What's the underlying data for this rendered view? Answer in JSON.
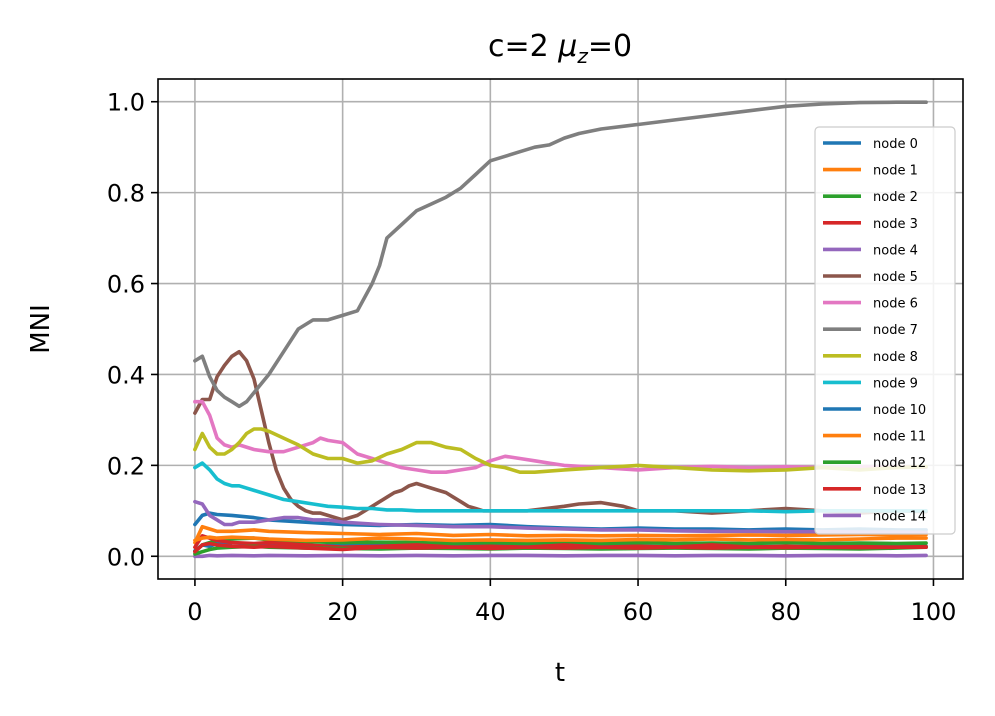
{
  "chart_data": {
    "type": "line",
    "title": "c=2 μ_z=0",
    "title_parts": {
      "prefix": "c=2 ",
      "mu": "μ",
      "sub": "z",
      "suffix": "=0"
    },
    "xlabel": "t",
    "ylabel": "MNI",
    "xlim": [
      -5,
      104
    ],
    "ylim": [
      -0.05,
      1.05
    ],
    "xticks": [
      0,
      20,
      40,
      60,
      80,
      100
    ],
    "xtick_labels": [
      "0",
      "20",
      "40",
      "60",
      "80",
      "100"
    ],
    "yticks": [
      0.0,
      0.2,
      0.4,
      0.6,
      0.8,
      1.0
    ],
    "ytick_labels": [
      "0.0",
      "0.2",
      "0.4",
      "0.6",
      "0.8",
      "1.0"
    ],
    "grid": true,
    "legend_position": "center-right",
    "series": [
      {
        "name": "node 0",
        "color": "#1f77b4",
        "x": [
          0,
          1,
          2,
          3,
          5,
          8,
          10,
          15,
          20,
          25,
          30,
          35,
          40,
          45,
          50,
          55,
          60,
          65,
          70,
          75,
          80,
          85,
          90,
          95,
          99
        ],
        "y": [
          0.012,
          0.025,
          0.022,
          0.028,
          0.03,
          0.026,
          0.025,
          0.022,
          0.024,
          0.026,
          0.025,
          0.022,
          0.023,
          0.022,
          0.024,
          0.023,
          0.022,
          0.021,
          0.023,
          0.022,
          0.021,
          0.022,
          0.022,
          0.023,
          0.022
        ]
      },
      {
        "name": "node 1",
        "color": "#ff7f0e",
        "x": [
          0,
          1,
          2,
          3,
          5,
          8,
          10,
          15,
          20,
          25,
          30,
          35,
          40,
          45,
          50,
          55,
          60,
          65,
          70,
          75,
          80,
          85,
          90,
          95,
          99
        ],
        "y": [
          0.03,
          0.065,
          0.06,
          0.055,
          0.055,
          0.058,
          0.055,
          0.052,
          0.05,
          0.048,
          0.05,
          0.046,
          0.048,
          0.045,
          0.046,
          0.045,
          0.046,
          0.045,
          0.046,
          0.047,
          0.046,
          0.047,
          0.048,
          0.047,
          0.048
        ]
      },
      {
        "name": "node 2",
        "color": "#2ca02c",
        "x": [
          0,
          1,
          2,
          3,
          5,
          8,
          10,
          15,
          20,
          25,
          30,
          35,
          40,
          45,
          50,
          55,
          60,
          65,
          70,
          75,
          80,
          85,
          90,
          95,
          99
        ],
        "y": [
          0.01,
          0.025,
          0.03,
          0.035,
          0.038,
          0.04,
          0.036,
          0.032,
          0.03,
          0.031,
          0.03,
          0.028,
          0.03,
          0.028,
          0.029,
          0.028,
          0.03,
          0.028,
          0.029,
          0.028,
          0.03,
          0.028,
          0.029,
          0.028,
          0.029
        ]
      },
      {
        "name": "node 3",
        "color": "#d62728",
        "x": [
          0,
          1,
          2,
          3,
          5,
          8,
          10,
          15,
          20,
          25,
          30,
          35,
          40,
          45,
          50,
          55,
          60,
          65,
          70,
          75,
          80,
          85,
          90,
          95,
          99
        ],
        "y": [
          0.02,
          0.045,
          0.04,
          0.035,
          0.03,
          0.028,
          0.03,
          0.025,
          0.02,
          0.022,
          0.025,
          0.02,
          0.022,
          0.02,
          0.025,
          0.02,
          0.022,
          0.02,
          0.025,
          0.02,
          0.022,
          0.02,
          0.021,
          0.02,
          0.021
        ]
      },
      {
        "name": "node 4",
        "color": "#9467bd",
        "x": [
          0,
          1,
          2,
          3,
          5,
          8,
          10,
          15,
          20,
          25,
          30,
          35,
          40,
          45,
          50,
          55,
          60,
          65,
          70,
          75,
          80,
          85,
          90,
          95,
          99
        ],
        "y": [
          0.0,
          0.0,
          0.002,
          0.001,
          0.002,
          0.001,
          0.002,
          0.001,
          0.002,
          0.001,
          0.002,
          0.001,
          0.002,
          0.002,
          0.001,
          0.002,
          0.002,
          0.001,
          0.002,
          0.002,
          0.001,
          0.002,
          0.002,
          0.001,
          0.002
        ]
      },
      {
        "name": "node 5",
        "color": "#8c564b",
        "x": [
          0,
          1,
          2,
          3,
          4,
          5,
          6,
          7,
          8,
          9,
          10,
          11,
          12,
          13,
          14,
          15,
          16,
          17,
          18,
          19,
          20,
          21,
          22,
          23,
          24,
          25,
          26,
          27,
          28,
          29,
          30,
          31,
          32,
          33,
          34,
          35,
          36,
          37,
          38,
          39,
          40,
          45,
          50,
          52,
          55,
          58,
          60,
          65,
          70,
          75,
          80,
          85,
          90,
          95,
          99
        ],
        "y": [
          0.315,
          0.345,
          0.345,
          0.395,
          0.42,
          0.44,
          0.45,
          0.43,
          0.39,
          0.32,
          0.25,
          0.19,
          0.15,
          0.125,
          0.11,
          0.1,
          0.095,
          0.095,
          0.09,
          0.085,
          0.08,
          0.085,
          0.09,
          0.1,
          0.11,
          0.12,
          0.13,
          0.14,
          0.145,
          0.155,
          0.16,
          0.155,
          0.15,
          0.145,
          0.14,
          0.13,
          0.12,
          0.11,
          0.105,
          0.1,
          0.1,
          0.1,
          0.11,
          0.115,
          0.118,
          0.11,
          0.1,
          0.1,
          0.095,
          0.1,
          0.105,
          0.1,
          0.095,
          0.1,
          0.098
        ]
      },
      {
        "name": "node 6",
        "color": "#e377c2",
        "x": [
          0,
          1,
          2,
          3,
          4,
          5,
          6,
          8,
          10,
          12,
          14,
          16,
          17,
          18,
          20,
          22,
          24,
          26,
          28,
          30,
          32,
          34,
          36,
          38,
          40,
          42,
          44,
          46,
          48,
          50,
          55,
          60,
          65,
          70,
          75,
          80,
          85,
          90,
          95,
          99
        ],
        "y": [
          0.34,
          0.34,
          0.31,
          0.26,
          0.245,
          0.24,
          0.245,
          0.235,
          0.23,
          0.23,
          0.24,
          0.25,
          0.26,
          0.255,
          0.25,
          0.225,
          0.215,
          0.205,
          0.195,
          0.19,
          0.185,
          0.185,
          0.19,
          0.195,
          0.21,
          0.22,
          0.215,
          0.21,
          0.205,
          0.2,
          0.195,
          0.19,
          0.195,
          0.198,
          0.195,
          0.197,
          0.195,
          0.196,
          0.197,
          0.196
        ]
      },
      {
        "name": "node 7",
        "color": "#7f7f7f",
        "x": [
          0,
          1,
          2,
          3,
          4,
          5,
          6,
          7,
          8,
          10,
          12,
          14,
          16,
          18,
          20,
          22,
          24,
          25,
          26,
          28,
          30,
          32,
          34,
          36,
          38,
          40,
          42,
          44,
          46,
          48,
          50,
          52,
          55,
          60,
          65,
          70,
          75,
          80,
          85,
          90,
          95,
          99
        ],
        "y": [
          0.43,
          0.44,
          0.395,
          0.365,
          0.35,
          0.34,
          0.33,
          0.34,
          0.36,
          0.4,
          0.45,
          0.5,
          0.52,
          0.52,
          0.53,
          0.54,
          0.6,
          0.64,
          0.7,
          0.73,
          0.76,
          0.775,
          0.79,
          0.81,
          0.84,
          0.87,
          0.88,
          0.89,
          0.9,
          0.905,
          0.92,
          0.93,
          0.94,
          0.95,
          0.96,
          0.97,
          0.98,
          0.99,
          0.995,
          0.998,
          0.999,
          0.999
        ]
      },
      {
        "name": "node 8",
        "color": "#bcbd22",
        "x": [
          0,
          1,
          2,
          3,
          4,
          5,
          6,
          7,
          8,
          9,
          10,
          12,
          14,
          16,
          18,
          20,
          22,
          24,
          26,
          28,
          30,
          32,
          34,
          36,
          38,
          40,
          42,
          44,
          46,
          50,
          55,
          60,
          65,
          70,
          75,
          80,
          85,
          90,
          95,
          99
        ],
        "y": [
          0.235,
          0.27,
          0.24,
          0.225,
          0.225,
          0.235,
          0.25,
          0.27,
          0.28,
          0.28,
          0.275,
          0.26,
          0.245,
          0.225,
          0.215,
          0.215,
          0.205,
          0.21,
          0.225,
          0.235,
          0.25,
          0.25,
          0.24,
          0.235,
          0.215,
          0.2,
          0.195,
          0.185,
          0.185,
          0.19,
          0.195,
          0.2,
          0.195,
          0.19,
          0.188,
          0.19,
          0.195,
          0.19,
          0.195,
          0.197
        ]
      },
      {
        "name": "node 9",
        "color": "#17becf",
        "x": [
          0,
          1,
          2,
          3,
          4,
          5,
          6,
          8,
          10,
          12,
          14,
          16,
          18,
          20,
          22,
          24,
          26,
          28,
          30,
          35,
          40,
          45,
          50,
          55,
          60,
          65,
          70,
          75,
          80,
          85,
          90,
          95,
          99
        ],
        "y": [
          0.195,
          0.205,
          0.19,
          0.17,
          0.16,
          0.155,
          0.155,
          0.145,
          0.135,
          0.125,
          0.12,
          0.115,
          0.11,
          0.108,
          0.105,
          0.105,
          0.102,
          0.102,
          0.1,
          0.1,
          0.1,
          0.1,
          0.1,
          0.1,
          0.1,
          0.1,
          0.1,
          0.1,
          0.098,
          0.1,
          0.1,
          0.1,
          0.1
        ]
      },
      {
        "name": "node 10",
        "color": "#1f77b4",
        "x": [
          0,
          1,
          2,
          3,
          5,
          8,
          10,
          15,
          20,
          25,
          30,
          35,
          40,
          45,
          50,
          55,
          60,
          65,
          70,
          75,
          80,
          85,
          90,
          95,
          99
        ],
        "y": [
          0.07,
          0.09,
          0.095,
          0.092,
          0.09,
          0.085,
          0.08,
          0.075,
          0.07,
          0.068,
          0.07,
          0.068,
          0.07,
          0.065,
          0.062,
          0.06,
          0.062,
          0.06,
          0.06,
          0.058,
          0.06,
          0.058,
          0.06,
          0.058,
          0.058
        ]
      },
      {
        "name": "node 11",
        "color": "#ff7f0e",
        "x": [
          0,
          1,
          2,
          3,
          5,
          8,
          10,
          15,
          20,
          25,
          30,
          35,
          40,
          45,
          50,
          55,
          60,
          65,
          70,
          75,
          80,
          85,
          90,
          95,
          99
        ],
        "y": [
          0.035,
          0.04,
          0.042,
          0.04,
          0.042,
          0.04,
          0.038,
          0.035,
          0.036,
          0.04,
          0.038,
          0.035,
          0.036,
          0.035,
          0.036,
          0.035,
          0.037,
          0.036,
          0.038,
          0.036,
          0.037,
          0.036,
          0.038,
          0.04,
          0.04
        ]
      },
      {
        "name": "node 12",
        "color": "#2ca02c",
        "x": [
          0,
          1,
          2,
          3,
          5,
          8,
          10,
          15,
          20,
          25,
          30,
          35,
          40,
          45,
          50,
          55,
          60,
          65,
          70,
          75,
          80,
          85,
          90,
          95,
          99
        ],
        "y": [
          0.005,
          0.01,
          0.015,
          0.018,
          0.02,
          0.022,
          0.02,
          0.018,
          0.017,
          0.016,
          0.018,
          0.017,
          0.016,
          0.018,
          0.017,
          0.016,
          0.017,
          0.018,
          0.017,
          0.016,
          0.018,
          0.017,
          0.016,
          0.018,
          0.02
        ]
      },
      {
        "name": "node 13",
        "color": "#d62728",
        "x": [
          0,
          1,
          2,
          3,
          5,
          8,
          10,
          15,
          20,
          25,
          30,
          35,
          40,
          45,
          50,
          55,
          60,
          65,
          70,
          75,
          80,
          85,
          90,
          95,
          99
        ],
        "y": [
          0.01,
          0.025,
          0.028,
          0.025,
          0.022,
          0.02,
          0.022,
          0.018,
          0.015,
          0.02,
          0.018,
          0.02,
          0.017,
          0.02,
          0.018,
          0.02,
          0.018,
          0.02,
          0.018,
          0.02,
          0.019,
          0.02,
          0.019,
          0.02,
          0.02
        ]
      },
      {
        "name": "node 14",
        "color": "#9467bd",
        "x": [
          0,
          1,
          2,
          3,
          4,
          5,
          6,
          8,
          10,
          12,
          14,
          16,
          18,
          20,
          25,
          30,
          35,
          40,
          45,
          50,
          55,
          60,
          65,
          70,
          75,
          80,
          85,
          90,
          95,
          99
        ],
        "y": [
          0.12,
          0.115,
          0.09,
          0.08,
          0.07,
          0.07,
          0.075,
          0.075,
          0.08,
          0.085,
          0.085,
          0.08,
          0.08,
          0.075,
          0.07,
          0.068,
          0.065,
          0.065,
          0.062,
          0.06,
          0.058,
          0.058,
          0.056,
          0.055,
          0.055,
          0.054,
          0.054,
          0.053,
          0.053,
          0.052
        ]
      }
    ]
  }
}
